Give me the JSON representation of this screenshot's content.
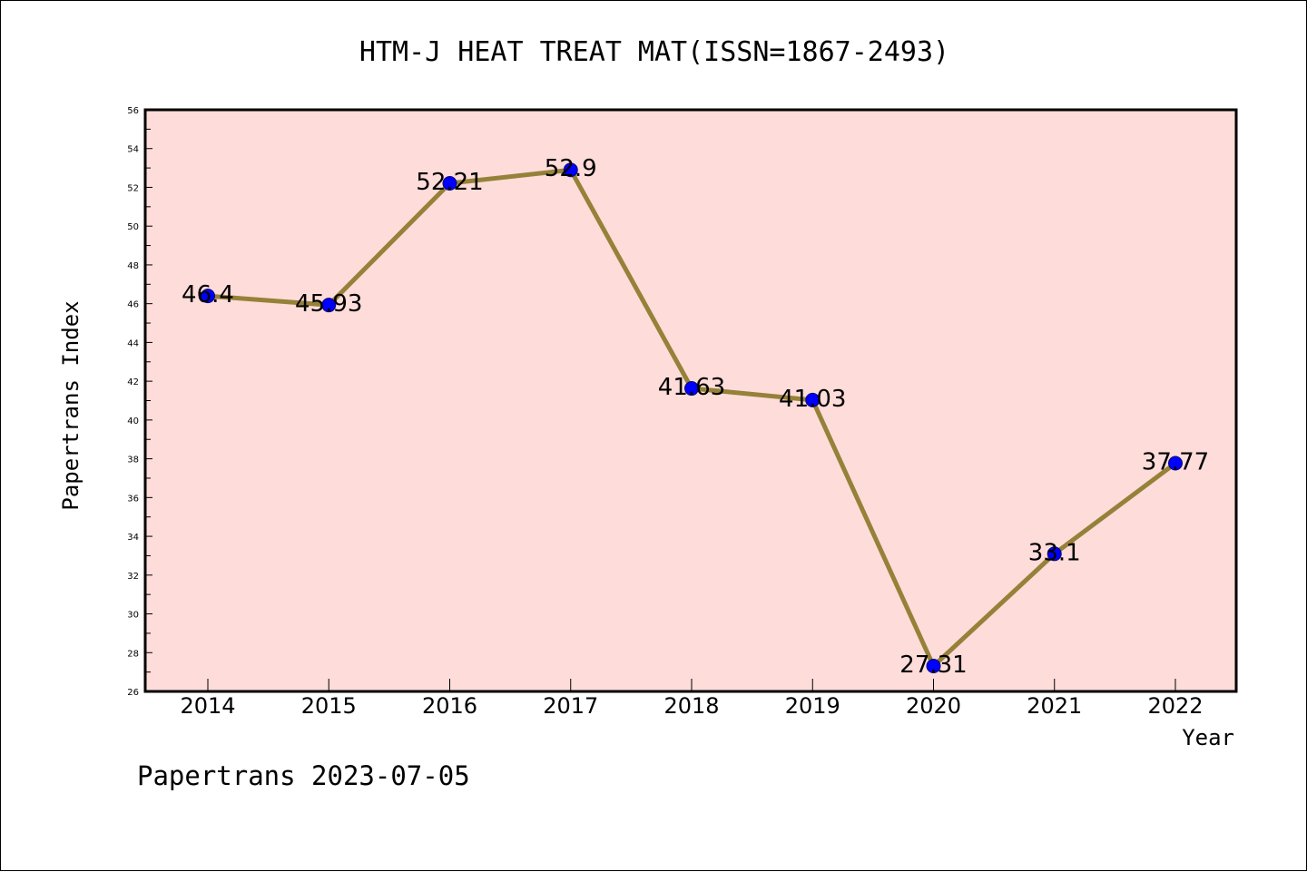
{
  "chart_data": {
    "type": "line",
    "title": "HTM-J HEAT TREAT MAT(ISSN=1867-2493)",
    "xlabel": "Year",
    "ylabel": "Papertrans Index",
    "categories": [
      "2014",
      "2015",
      "2016",
      "2017",
      "2018",
      "2019",
      "2020",
      "2021",
      "2022"
    ],
    "values": [
      46.4,
      45.93,
      52.21,
      52.9,
      41.63,
      41.03,
      27.31,
      33.1,
      37.77
    ],
    "data_labels": [
      "46.4",
      "45.93",
      "52.21",
      "52.9",
      "41.63",
      "41.03",
      "27.31",
      "33.1",
      "37.77"
    ],
    "ylim": [
      26,
      56
    ],
    "yticks": [
      "26",
      "28",
      "30",
      "32",
      "34",
      "36",
      "38",
      "40",
      "42",
      "44",
      "46",
      "48",
      "50",
      "52",
      "54",
      "56"
    ],
    "grid": false,
    "legend": "none",
    "colors": {
      "plot_background": "#fddcda",
      "line": "#958138",
      "marker": "#0000ff",
      "marker_edge": "#0a0a6a"
    }
  },
  "footer": "Papertrans 2023-07-05"
}
